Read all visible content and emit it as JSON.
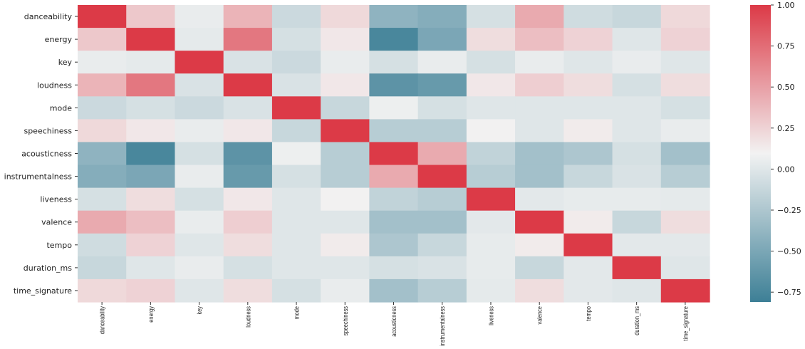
{
  "chart_data": {
    "type": "heatmap",
    "title": "",
    "xlabel": "",
    "ylabel": "",
    "row_labels": [
      "danceability",
      "energy",
      "key",
      "loudness",
      "mode",
      "speechiness",
      "acousticness",
      "instrumentalness",
      "liveness",
      "valence",
      "tempo",
      "duration_ms",
      "time_signature"
    ],
    "col_labels": [
      "danceability",
      "energy",
      "key",
      "loudness",
      "mode",
      "speechiness",
      "acousticness",
      "instrumentalness",
      "liveness",
      "valence",
      "tempo",
      "duration_ms",
      "time_signature"
    ],
    "values": [
      [
        1,
        0.3,
        0.05,
        0.4,
        -0.1,
        0.22,
        -0.4,
        -0.45,
        -0.05,
        0.45,
        -0.08,
        -0.12,
        0.22
      ],
      [
        0.3,
        1,
        0.03,
        0.7,
        -0.05,
        0.15,
        -0.75,
        -0.5,
        0.2,
        0.35,
        0.25,
        0.0,
        0.25
      ],
      [
        0.05,
        0.03,
        1,
        -0.03,
        -0.1,
        0.05,
        -0.05,
        0.05,
        -0.05,
        0.05,
        0.0,
        0.05,
        0.0
      ],
      [
        0.4,
        0.7,
        -0.03,
        1,
        -0.03,
        0.15,
        -0.65,
        -0.6,
        0.15,
        0.27,
        0.2,
        -0.05,
        0.2
      ],
      [
        -0.1,
        -0.05,
        -0.1,
        -0.03,
        1,
        -0.12,
        0.07,
        -0.05,
        0.0,
        0.0,
        0.0,
        0.0,
        -0.05
      ],
      [
        0.22,
        0.15,
        0.05,
        0.15,
        -0.12,
        1,
        -0.2,
        -0.2,
        0.1,
        0.0,
        0.13,
        0.0,
        0.05
      ],
      [
        -0.4,
        -0.75,
        -0.05,
        -0.65,
        0.07,
        -0.2,
        1,
        0.45,
        -0.15,
        -0.3,
        -0.25,
        -0.05,
        -0.3
      ],
      [
        -0.45,
        -0.5,
        0.05,
        -0.6,
        -0.05,
        -0.2,
        0.45,
        1,
        -0.2,
        -0.3,
        -0.12,
        -0.03,
        -0.2
      ],
      [
        -0.05,
        0.2,
        -0.05,
        0.15,
        0.0,
        0.1,
        -0.15,
        -0.2,
        1,
        0.02,
        0.04,
        0.04,
        0.03
      ],
      [
        0.45,
        0.35,
        0.05,
        0.27,
        0.0,
        0.0,
        -0.3,
        -0.3,
        0.02,
        1,
        0.13,
        -0.12,
        0.2
      ],
      [
        -0.08,
        0.25,
        0.0,
        0.2,
        0.0,
        0.13,
        -0.25,
        -0.12,
        0.04,
        0.13,
        1,
        0.02,
        0.02
      ],
      [
        -0.12,
        0.0,
        0.05,
        -0.05,
        0.0,
        0.0,
        -0.05,
        -0.03,
        0.04,
        -0.12,
        0.02,
        1,
        0.0
      ],
      [
        0.22,
        0.25,
        0.0,
        0.2,
        -0.05,
        0.05,
        -0.3,
        -0.2,
        0.03,
        0.2,
        0.02,
        0.0,
        1
      ]
    ],
    "color_range": [
      -0.81,
      1.0
    ],
    "colormap": {
      "low": "#3d7f96",
      "mid": "#f2f2f2",
      "high": "#dc3a47"
    },
    "colorbar_ticks": [
      1.0,
      0.75,
      0.5,
      0.25,
      0.0,
      -0.25,
      -0.5,
      -0.75
    ],
    "colorbar_tick_labels": [
      "1.00",
      "0.75",
      "0.50",
      "0.25",
      "0.00",
      "−0.25",
      "−0.50",
      "−0.75"
    ],
    "colorbar_placement": "right",
    "grid": false
  }
}
